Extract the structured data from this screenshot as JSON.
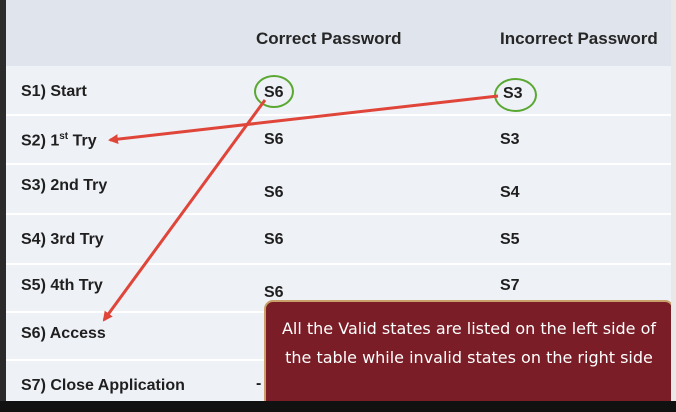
{
  "headers": {
    "correct": "Correct Password",
    "incorrect": "Incorrect Password"
  },
  "rows": [
    {
      "state": "S1) Start",
      "correct": "S6",
      "incorrect": "S3"
    },
    {
      "state_prefix": "S2) 1",
      "state_sup": "st",
      "state_suffix": " Try",
      "correct": "S6",
      "incorrect": "S3"
    },
    {
      "state": "S3) 2nd Try",
      "correct": "S6",
      "incorrect": "S4"
    },
    {
      "state": "S4) 3rd Try",
      "correct": "S6",
      "incorrect": "S5"
    },
    {
      "state": "S5) 4th Try",
      "correct": "S6",
      "incorrect": "S7"
    },
    {
      "state": "S6) Access",
      "correct": "",
      "incorrect": ""
    },
    {
      "state": "S7) Close Application",
      "correct": "-",
      "incorrect": ""
    }
  ],
  "callout": {
    "text": "All the Valid states are listed on the left side of the table while invalid states on the right side"
  },
  "colors": {
    "arrow": "#e0453a",
    "circle": "#5aa832",
    "callout_bg": "#7a1d26",
    "callout_border": "#c9a06a",
    "header_bg": "#dfe4ed",
    "row_bg": "#eef1f6"
  }
}
